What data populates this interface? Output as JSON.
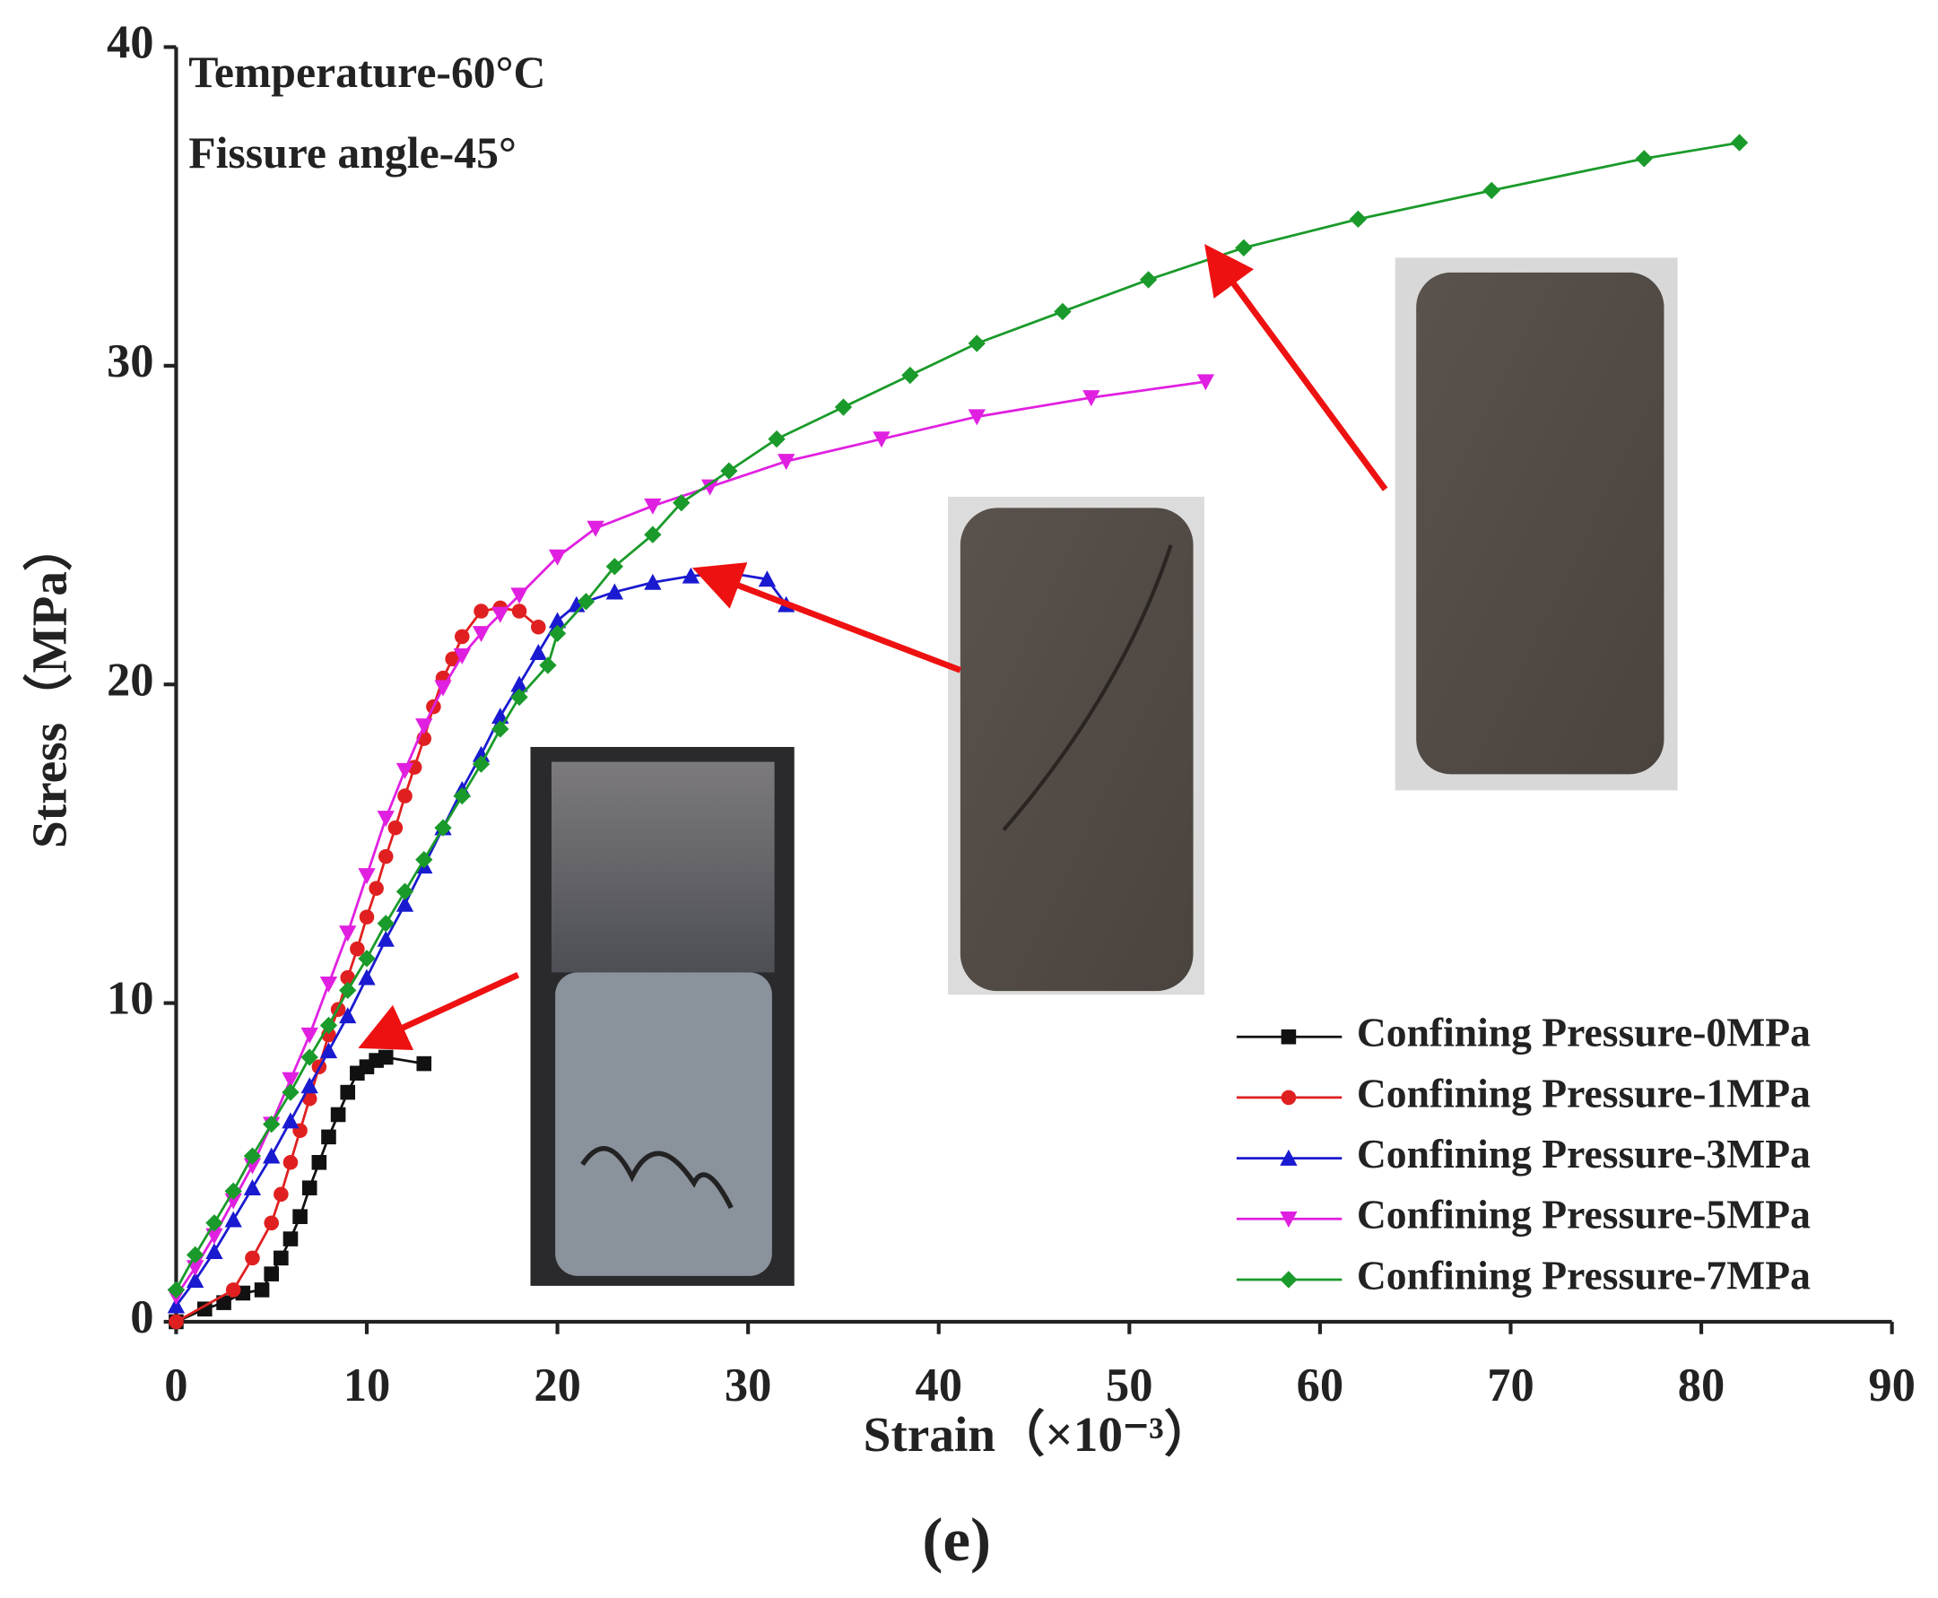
{
  "chart_data": {
    "type": "line",
    "annotations": [
      "Temperature-60°C",
      "Fissure angle-45°"
    ],
    "x_label": "Strain（×10⁻³）",
    "y_label": "Stress（MPa）",
    "caption": "(e)",
    "xlim": [
      0,
      90
    ],
    "xticks": [
      0,
      10,
      20,
      30,
      40,
      50,
      60,
      70,
      80,
      90
    ],
    "ylim": [
      0,
      40
    ],
    "yticks": [
      0,
      10,
      20,
      30,
      40
    ],
    "legend": "lower right",
    "series": [
      {
        "name": "Confining Pressure-0MPa",
        "color": "#111111",
        "marker": "square",
        "x": [
          0,
          1.5,
          2.5,
          3.5,
          4.5,
          5,
          5.5,
          6,
          6.5,
          7,
          7.5,
          8,
          8.5,
          9,
          9.5,
          10,
          10.5,
          11,
          13
        ],
        "values": [
          0,
          0.4,
          0.6,
          0.9,
          1,
          1.5,
          2,
          2.6,
          3.3,
          4.2,
          5,
          5.8,
          6.5,
          7.2,
          7.8,
          8,
          8.2,
          8.3,
          8.1
        ]
      },
      {
        "name": "Confining Pressure-1MPa",
        "color": "#e02020",
        "marker": "circle",
        "x": [
          0,
          3,
          4,
          5,
          5.5,
          6,
          6.5,
          7,
          7.5,
          8,
          8.5,
          9,
          9.5,
          10,
          10.5,
          11,
          11.5,
          12,
          12.5,
          13,
          13.5,
          14,
          14.5,
          15,
          16,
          17,
          18,
          19
        ],
        "values": [
          0,
          1,
          2,
          3.1,
          4,
          5,
          6,
          7,
          8,
          9,
          9.8,
          10.8,
          11.7,
          12.7,
          13.6,
          14.6,
          15.5,
          16.5,
          17.4,
          18.3,
          19.3,
          20.2,
          20.8,
          21.5,
          22.3,
          22.4,
          22.3,
          21.8
        ]
      },
      {
        "name": "Confining Pressure-3MPa",
        "color": "#1a1ad0",
        "marker": "triangle-up",
        "x": [
          0,
          1,
          2,
          3,
          4,
          5,
          6,
          7,
          8,
          9,
          10,
          11,
          12,
          13,
          14,
          15,
          16,
          17,
          18,
          19,
          20,
          21,
          23,
          25,
          27,
          29,
          31,
          32
        ],
        "values": [
          0.5,
          1.3,
          2.2,
          3.2,
          4.2,
          5.2,
          6.3,
          7.4,
          8.5,
          9.6,
          10.8,
          12,
          13.1,
          14.3,
          15.5,
          16.7,
          17.8,
          19,
          20,
          21,
          22,
          22.5,
          22.9,
          23.2,
          23.4,
          23.5,
          23.3,
          22.5
        ]
      },
      {
        "name": "Confining Pressure-5MPa",
        "color": "#e020e0",
        "marker": "triangle-down",
        "x": [
          0,
          1,
          2,
          3,
          4,
          5,
          6,
          7,
          8,
          9,
          10,
          11,
          12,
          13,
          14,
          15,
          16,
          17,
          18,
          20,
          22,
          25,
          28,
          32,
          37,
          42,
          48,
          54
        ],
        "values": [
          0.8,
          1.7,
          2.7,
          3.8,
          4.9,
          6.2,
          7.6,
          9,
          10.6,
          12.2,
          14,
          15.8,
          17.3,
          18.7,
          19.9,
          20.9,
          21.6,
          22.2,
          22.8,
          24,
          24.9,
          25.6,
          26.2,
          27,
          27.7,
          28.4,
          29,
          29.5
        ]
      },
      {
        "name": "Confining Pressure-7MPa",
        "color": "#1a9a2a",
        "marker": "diamond",
        "x": [
          0,
          1,
          2,
          3,
          4,
          5,
          6,
          7,
          8,
          9,
          10,
          11,
          12,
          13,
          14,
          15,
          16,
          17,
          18,
          19.5,
          20,
          21.5,
          23,
          25,
          26.5,
          29,
          31.5,
          35,
          38.5,
          42,
          46.5,
          51,
          56,
          62,
          69,
          77,
          82
        ],
        "values": [
          1,
          2.1,
          3.1,
          4.1,
          5.2,
          6.2,
          7.2,
          8.3,
          9.3,
          10.4,
          11.4,
          12.5,
          13.5,
          14.5,
          15.5,
          16.5,
          17.5,
          18.6,
          19.6,
          20.6,
          21.6,
          22.6,
          23.7,
          24.7,
          25.7,
          26.7,
          27.7,
          28.7,
          29.7,
          30.7,
          31.7,
          32.7,
          33.7,
          34.6,
          35.5,
          36.5,
          37
        ]
      }
    ]
  }
}
